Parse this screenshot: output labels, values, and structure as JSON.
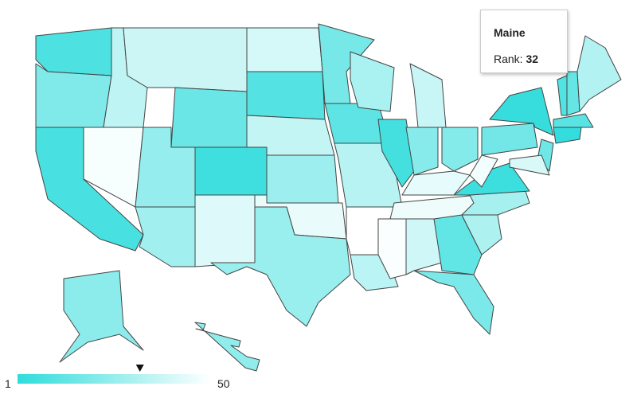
{
  "map": {
    "color_scale": {
      "low": "#2fdcdc",
      "high": "#ffffff"
    },
    "legend": {
      "min": 1,
      "max": 50
    },
    "tooltip": {
      "title": "Maine",
      "label": "Rank:",
      "value": 32
    },
    "regions": [
      {
        "value": 8
      },
      {
        "value": 20
      },
      {
        "value": 7
      },
      {
        "value": 48
      },
      {
        "value": 35
      },
      {
        "value": 38
      },
      {
        "value": 15
      },
      {
        "value": 25
      },
      {
        "value": 5
      },
      {
        "value": 28
      },
      {
        "value": 42
      },
      {
        "value": 40
      },
      {
        "value": 10
      },
      {
        "value": 36
      },
      {
        "value": 27
      },
      {
        "value": 45
      },
      {
        "value": 26
      },
      {
        "value": 18
      },
      {
        "value": 12
      },
      {
        "value": 33
      },
      {
        "value": 50
      },
      {
        "value": 34
      },
      {
        "value": 30
      },
      {
        "value": 6
      },
      {
        "value": 37
      },
      {
        "value": 22
      },
      {
        "value": 21
      },
      {
        "value": 44
      },
      {
        "value": 46
      },
      {
        "value": 49
      },
      {
        "value": 39
      },
      {
        "value": 13
      },
      {
        "value": 19
      },
      {
        "value": 31
      },
      {
        "value": 29
      },
      {
        "value": 4
      },
      {
        "value": 47
      },
      {
        "value": 17
      },
      {
        "value": 3
      },
      {
        "value": 9
      },
      {
        "value": 14
      },
      {
        "value": 32
      },
      {
        "value": 11
      },
      {
        "value": 2
      },
      {
        "value": 16
      },
      {
        "value": 41
      },
      {
        "value": 23
      },
      {
        "value": 24
      }
    ]
  }
}
